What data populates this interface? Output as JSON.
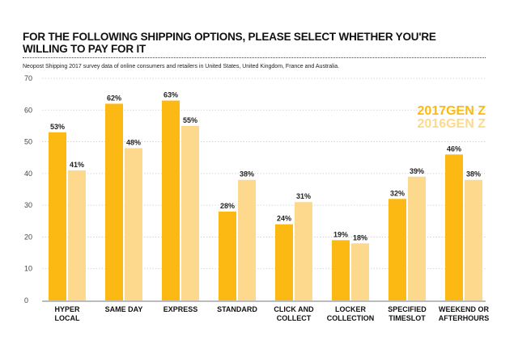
{
  "chart_data": {
    "type": "bar",
    "title": "FOR THE FOLLOWING SHIPPING OPTIONS, PLEASE SELECT WHETHER YOU'RE WILLING TO PAY FOR IT",
    "subtitle": "Neopost Shipping 2017 survey data of online consumers and retailers in United States, United Kingdom, France and Australia.",
    "categories": [
      [
        "HYPER",
        "LOCAL"
      ],
      [
        "SAME DAY"
      ],
      [
        "EXPRESS"
      ],
      [
        "STANDARD"
      ],
      [
        "CLICK AND",
        "COLLECT"
      ],
      [
        "LOCKER",
        "COLLECTION"
      ],
      [
        "SPECIFIED",
        "TIMESLOT"
      ],
      [
        "WEEKEND OR",
        "AFTERHOURS"
      ]
    ],
    "series": [
      {
        "name": "2017GEN Z",
        "color": "#FDB913",
        "values": [
          53,
          62,
          63,
          28,
          24,
          19,
          32,
          46
        ],
        "labels": [
          "53%",
          "62%",
          "63%",
          "28%",
          "24%",
          "19%",
          "32%",
          "46%"
        ]
      },
      {
        "name": "2016GEN Z",
        "color": "#FDD98E",
        "values": [
          41,
          48,
          55,
          38,
          31,
          18,
          39,
          38
        ],
        "labels": [
          "41%",
          "48%",
          "55%",
          "38%",
          "31%",
          "18%",
          "39%",
          "38%"
        ]
      }
    ],
    "yticks": [
      0,
      10,
      20,
      30,
      40,
      50,
      60,
      70
    ],
    "ylim": [
      0,
      70
    ],
    "grid": true,
    "legend": "top-right"
  }
}
